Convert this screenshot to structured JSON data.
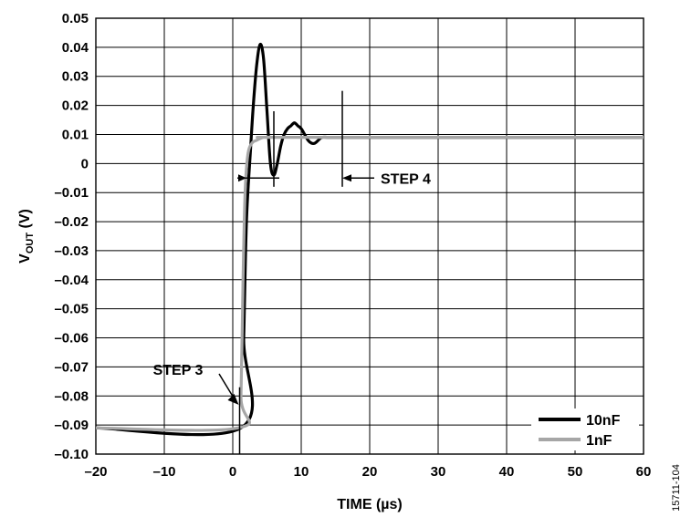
{
  "chart_data": {
    "type": "line",
    "xlabel": "TIME (µs)",
    "ylabel_main": "V",
    "ylabel_sub": "OUT",
    "ylabel_unit": " (V)",
    "xlim": [
      -20,
      60
    ],
    "ylim": [
      -0.1,
      0.05
    ],
    "x_ticks": [
      -20,
      -10,
      0,
      10,
      20,
      30,
      40,
      50,
      60
    ],
    "x_tick_labels": [
      "–20",
      "–10",
      "0",
      "10",
      "20",
      "30",
      "40",
      "50",
      "60"
    ],
    "y_ticks": [
      0.05,
      0.04,
      0.03,
      0.02,
      0.01,
      0,
      -0.01,
      -0.02,
      -0.03,
      -0.04,
      -0.05,
      -0.06,
      -0.07,
      -0.08,
      -0.09,
      -0.1
    ],
    "y_tick_labels": [
      "0.05",
      "0.04",
      "0.03",
      "0.02",
      "0.01",
      "0",
      "–0.01",
      "–0.02",
      "–0.03",
      "–0.04",
      "–0.05",
      "–0.06",
      "–0.07",
      "–0.08",
      "–0.09",
      "–0.10"
    ],
    "grid": true,
    "legend_position": "bottom-right",
    "series": [
      {
        "name": "10nF",
        "color": "#000000",
        "x": [
          -20,
          1.2,
          1.6,
          2.0,
          2.6,
          3.0,
          3.5,
          4.0,
          4.5,
          5.0,
          5.5,
          6.0,
          6.5,
          7.0,
          7.5,
          8.0,
          8.5,
          9.0,
          9.5,
          10.0,
          10.5,
          11.0,
          11.5,
          12.0,
          12.5,
          13.0,
          14.0,
          16.0,
          20.0,
          60.0
        ],
        "y": [
          -0.091,
          -0.091,
          -0.06,
          -0.02,
          0.005,
          0.02,
          0.034,
          0.041,
          0.036,
          0.018,
          0.0,
          -0.004,
          0.0,
          0.006,
          0.01,
          0.012,
          0.013,
          0.014,
          0.013,
          0.012,
          0.01,
          0.008,
          0.007,
          0.007,
          0.008,
          0.009,
          0.009,
          0.009,
          0.009,
          0.009
        ]
      },
      {
        "name": "1nF",
        "color": "#a6a6a6",
        "x": [
          -20,
          0.8,
          1.2,
          1.5,
          1.8,
          2.2,
          2.8,
          3.5,
          4.5,
          6.0,
          8.0,
          60.0
        ],
        "y": [
          -0.091,
          -0.091,
          -0.08,
          -0.04,
          -0.01,
          0.003,
          0.007,
          0.008,
          0.009,
          0.009,
          0.009,
          0.009
        ]
      }
    ],
    "annotations": {
      "step3": {
        "label": "STEP 3",
        "marker_x": 1.0,
        "arrow_tip_y": -0.083
      },
      "step4": {
        "label": "STEP 4",
        "bracket_x": [
          2.0,
          6.0,
          16.0
        ],
        "arrow_y": -0.005
      }
    },
    "figure_id": "15711-104"
  }
}
